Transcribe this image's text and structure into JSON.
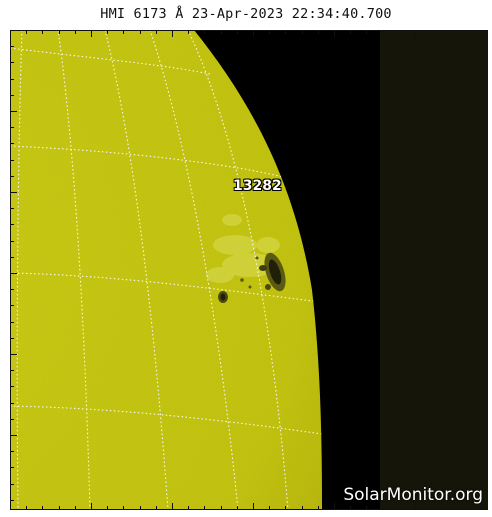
{
  "title": "HMI 6173 Å 23-Apr-2023 22:34:40.700",
  "active_region": "13282",
  "watermark": "SolarMonitor.org",
  "colors": {
    "disk": "#c8c814",
    "space": "#000000",
    "grid": "#ffffff"
  }
}
